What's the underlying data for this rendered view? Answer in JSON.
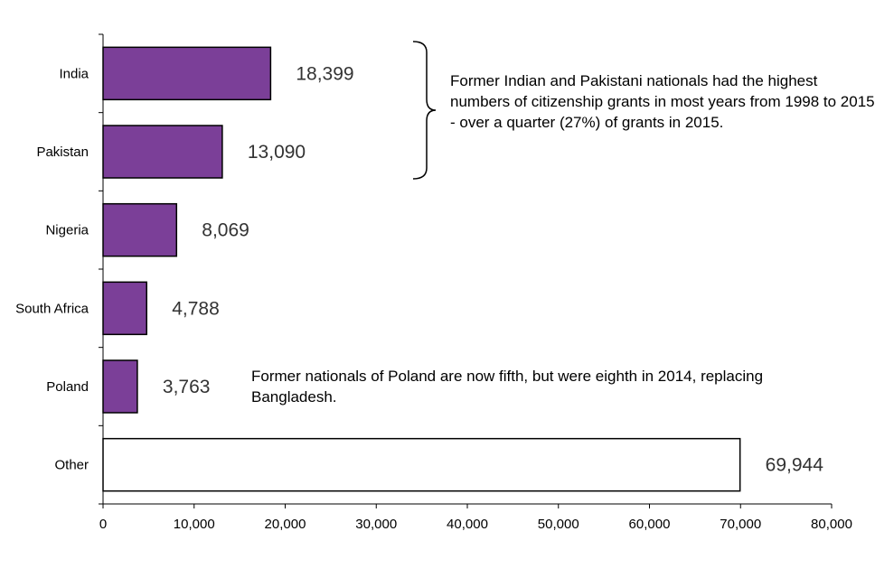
{
  "chart_data": {
    "type": "bar",
    "orientation": "horizontal",
    "categories": [
      "India",
      "Pakistan",
      "Nigeria",
      "South Africa",
      "Poland",
      "Other"
    ],
    "values": [
      18399,
      13090,
      8069,
      4788,
      3763,
      69944
    ],
    "value_labels": [
      "18,399",
      "13,090",
      "8,069",
      "4,788",
      "3,763",
      "69,944"
    ],
    "xlim": [
      0,
      80000
    ],
    "x_ticks": [
      0,
      10000,
      20000,
      30000,
      40000,
      50000,
      60000,
      70000,
      80000
    ],
    "x_tick_labels": [
      "0",
      "10,000",
      "20,000",
      "30,000",
      "40,000",
      "50,000",
      "60,000",
      "70,000",
      "80,000"
    ],
    "grid": false,
    "colors": {
      "bar_fill": "#7B3F98",
      "other_fill": "#FFFFFF",
      "bar_stroke": "#000000"
    },
    "annotations": [
      "Former Indian and Pakistani nationals had the highest numbers of citizenship grants in most years from 1998 to 2015 - over a quarter (27%) of grants in 2015.",
      "Former nationals of Poland are now fifth, but were eighth in 2014, replacing Bangladesh."
    ]
  }
}
